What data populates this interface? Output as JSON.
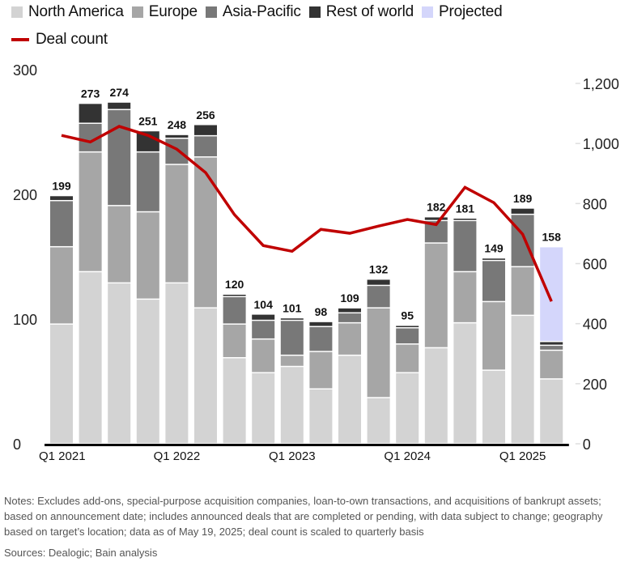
{
  "chart_data": {
    "type": "bar",
    "stacked": true,
    "title": "",
    "xlabel": "",
    "ylabel": "",
    "ylim": [
      0,
      300
    ],
    "y2lim": [
      0,
      1200
    ],
    "yticks": [
      0,
      100,
      200,
      300
    ],
    "y2ticks": [
      0,
      200,
      400,
      600,
      800,
      1000,
      1200
    ],
    "y2tick_labels": [
      "0",
      "200",
      "400",
      "600",
      "800",
      "1,000",
      "1,200"
    ],
    "grid": false,
    "legend_position": "top-left",
    "categories": [
      "Q1 2021",
      "Q2 2021",
      "Q3 2021",
      "Q4 2021",
      "Q1 2022",
      "Q2 2022",
      "Q3 2022",
      "Q4 2022",
      "Q1 2023",
      "Q2 2023",
      "Q3 2023",
      "Q4 2023",
      "Q1 2024",
      "Q2 2024",
      "Q3 2024",
      "Q4 2024",
      "Q1 2025",
      "Q2 2025"
    ],
    "x_tick_labels": [
      {
        "index": 0,
        "label": "Q1 2021"
      },
      {
        "index": 4,
        "label": "Q1 2022"
      },
      {
        "index": 8,
        "label": "Q1 2023"
      },
      {
        "index": 12,
        "label": "Q1 2024"
      },
      {
        "index": 16,
        "label": "Q1 2025"
      }
    ],
    "series": [
      {
        "name": "North America",
        "color": "#d3d3d3",
        "values": [
          96,
          138,
          129,
          116,
          129,
          109,
          69,
          57,
          62,
          44,
          71,
          37,
          57,
          77,
          97,
          59,
          103,
          52
        ]
      },
      {
        "name": "Europe",
        "color": "#a6a6a6",
        "values": [
          62,
          96,
          62,
          70,
          95,
          121,
          27,
          27,
          9,
          30,
          26,
          72,
          23,
          84,
          41,
          55,
          39,
          23
        ]
      },
      {
        "name": "Asia-Pacific",
        "color": "#787878",
        "values": [
          37,
          23,
          77,
          48,
          21,
          17,
          22,
          15,
          28,
          20,
          8,
          18,
          13,
          18,
          41,
          33,
          42,
          4
        ]
      },
      {
        "name": "Rest of world",
        "color": "#333333",
        "values": [
          4,
          16,
          6,
          17,
          3,
          9,
          2,
          5,
          2,
          4,
          4,
          5,
          2,
          3,
          2,
          2,
          5,
          3
        ]
      },
      {
        "name": "Projected",
        "color": "#d4d6fb",
        "values": [
          0,
          0,
          0,
          0,
          0,
          0,
          0,
          0,
          0,
          0,
          0,
          0,
          0,
          0,
          0,
          0,
          0,
          76
        ]
      }
    ],
    "totals": [
      199,
      273,
      274,
      251,
      248,
      256,
      120,
      104,
      101,
      98,
      109,
      132,
      95,
      182,
      181,
      149,
      189,
      158
    ],
    "line_series": {
      "name": "Deal count",
      "axis": "right",
      "color": "#c00000",
      "values": [
        1027,
        1005,
        1057,
        1027,
        981,
        903,
        763,
        660,
        641,
        714,
        701,
        725,
        747,
        730,
        854,
        803,
        698,
        474
      ]
    }
  },
  "legend": {
    "items": [
      {
        "label": "North America",
        "color": "#d3d3d3"
      },
      {
        "label": "Europe",
        "color": "#a6a6a6"
      },
      {
        "label": "Asia-Pacific",
        "color": "#787878"
      },
      {
        "label": "Rest of world",
        "color": "#333333"
      },
      {
        "label": "Projected",
        "color": "#d4d6fb"
      }
    ],
    "line_label": "Deal count"
  },
  "footer": {
    "notes": "Notes: Excludes add-ons, special-purpose acquisition companies, loan-to-own transactions, and acquisitions of bankrupt assets; based on announcement date; includes announced deals that are completed or pending, with data subject to change; geography based on target’s location; data as of May 19, 2025; deal count is scaled to quarterly basis",
    "sources": "Sources: Dealogic; Bain analysis"
  }
}
